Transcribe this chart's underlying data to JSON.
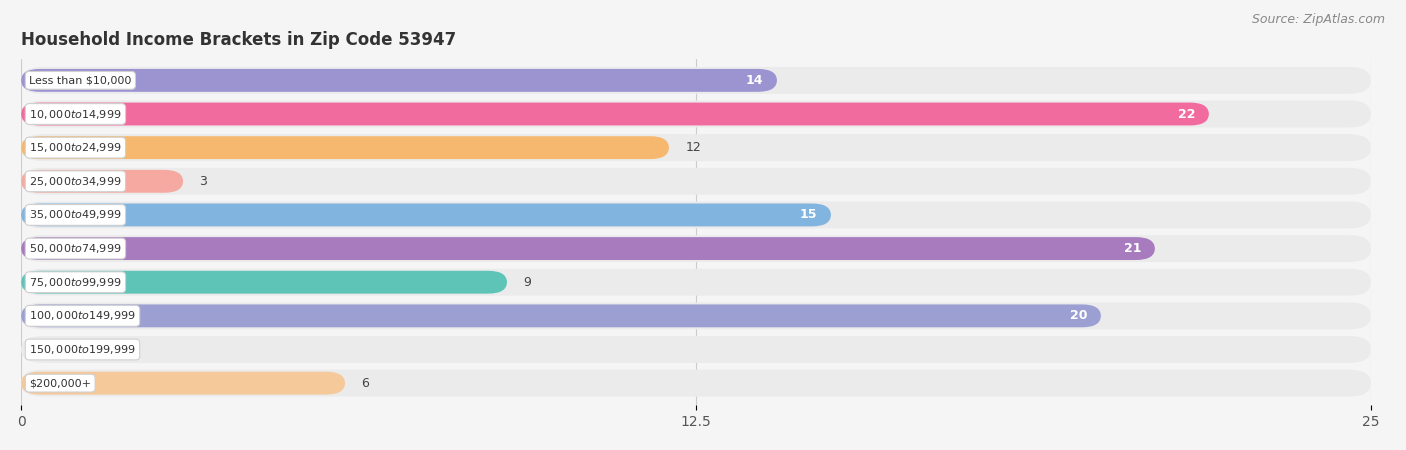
{
  "title": "Household Income Brackets in Zip Code 53947",
  "source": "Source: ZipAtlas.com",
  "categories": [
    "Less than $10,000",
    "$10,000 to $14,999",
    "$15,000 to $24,999",
    "$25,000 to $34,999",
    "$35,000 to $49,999",
    "$50,000 to $74,999",
    "$75,000 to $99,999",
    "$100,000 to $149,999",
    "$150,000 to $199,999",
    "$200,000+"
  ],
  "values": [
    14,
    22,
    12,
    3,
    15,
    21,
    9,
    20,
    0,
    6
  ],
  "colors": [
    "#9b94d1",
    "#f26b9e",
    "#f5b86e",
    "#f5a9a0",
    "#82b4e0",
    "#a87bbf",
    "#5ec4b8",
    "#9b9fd1",
    "#f5a0b5",
    "#f5c99a"
  ],
  "xlim": [
    0,
    25
  ],
  "xticks": [
    0,
    12.5,
    25
  ],
  "background_color": "#f5f5f5",
  "bar_background": "#ebebeb",
  "title_fontsize": 12,
  "source_fontsize": 9,
  "label_inside_threshold": 14
}
